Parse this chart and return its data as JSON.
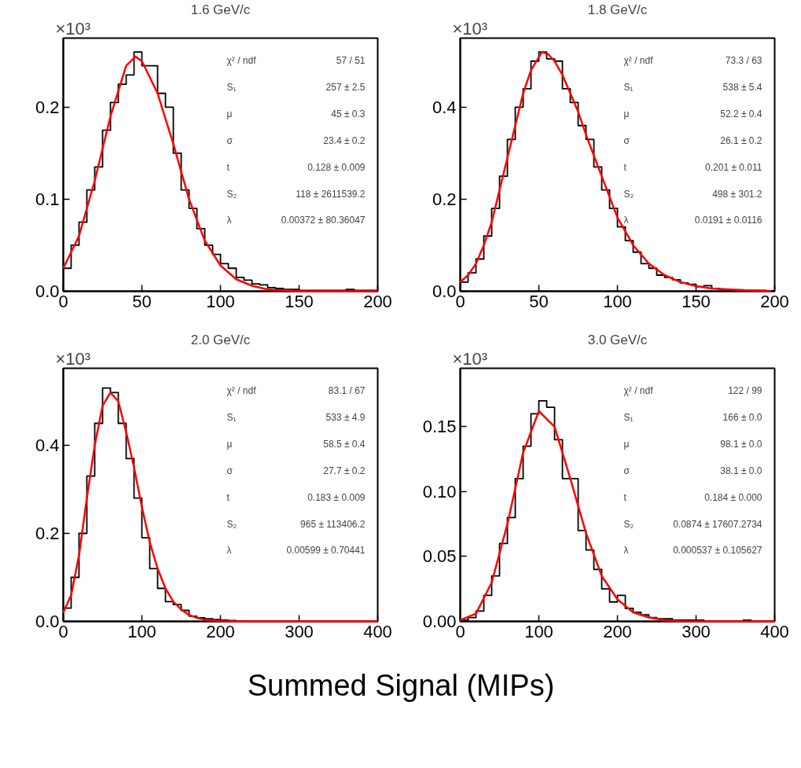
{
  "chart_data": [
    {
      "type": "histogram",
      "title": "1.6 GeV/c",
      "xlim": [
        0,
        200
      ],
      "ylim": [
        0,
        0.275
      ],
      "xticks": [
        0,
        50,
        100,
        150,
        200
      ],
      "yticks": [
        {
          "value": 0,
          "label": "0.0"
        },
        0.1,
        0.2
      ],
      "grid": false,
      "annotations": [
        "×10³",
        "χ² / ndf",
        "57 / 51",
        "S₁",
        "257 ± 2.5",
        "μ",
        "45 ± 0.3",
        "σ",
        "23.4 ± 0.2",
        "t",
        "0.128 ± 0.009",
        "S₂",
        "118 ± 2611539.2",
        "λ",
        "0.00372 ± 80.36047"
      ],
      "series": [
        {
          "type": "histogram",
          "color": "#000000",
          "bins": [
            0,
            5,
            10,
            15,
            20,
            25,
            30,
            35,
            40,
            45,
            50,
            55,
            60,
            65,
            70,
            75,
            80,
            85,
            90,
            95,
            100,
            105,
            110,
            115,
            120,
            125,
            130,
            135,
            140,
            145,
            150,
            155,
            160,
            165,
            170,
            175,
            180,
            185,
            190,
            195,
            200
          ],
          "values": [
            0.025,
            0.05,
            0.075,
            0.11,
            0.135,
            0.175,
            0.205,
            0.225,
            0.235,
            0.26,
            0.245,
            0.245,
            0.215,
            0.2,
            0.15,
            0.11,
            0.09,
            0.068,
            0.05,
            0.04,
            0.03,
            0.025,
            0.015,
            0.012,
            0.008,
            0.007,
            0.004,
            0.003,
            0.002,
            0.002,
            0.001,
            0.001,
            0.001,
            0.001,
            0.001,
            0.001,
            0.002,
            0.001,
            0.001,
            0.001
          ]
        },
        {
          "type": "line",
          "color": "#ff0000",
          "x": [
            0,
            10,
            20,
            30,
            40,
            46,
            50,
            60,
            70,
            80,
            90,
            100,
            110,
            120,
            130,
            140,
            150,
            200
          ],
          "values": [
            0.025,
            0.06,
            0.12,
            0.19,
            0.245,
            0.255,
            0.25,
            0.215,
            0.16,
            0.1,
            0.055,
            0.028,
            0.013,
            0.006,
            0.002,
            0.001,
            0,
            0
          ]
        }
      ]
    },
    {
      "type": "histogram",
      "title": "1.8 GeV/c",
      "xlim": [
        0,
        200
      ],
      "ylim": [
        0,
        0.55
      ],
      "xticks": [
        0,
        50,
        100,
        150,
        200
      ],
      "yticks": [
        {
          "value": 0,
          "label": "0.0"
        },
        0.2,
        0.4
      ],
      "grid": false,
      "annotations": [
        "×10³",
        "χ² / ndf",
        "73.3 / 63",
        "S₁",
        "538 ± 5.4",
        "μ",
        "52.2 ± 0.4",
        "σ",
        "26.1 ± 0.2",
        "t",
        "0.201 ± 0.011",
        "S₂",
        "498 ± 301.2",
        "λ",
        "0.0191 ± 0.0116"
      ],
      "series": [
        {
          "type": "histogram",
          "color": "#000000",
          "bins": [
            0,
            5,
            10,
            15,
            20,
            25,
            30,
            35,
            40,
            45,
            50,
            55,
            60,
            65,
            70,
            75,
            80,
            85,
            90,
            95,
            100,
            105,
            110,
            115,
            120,
            125,
            130,
            135,
            140,
            145,
            150,
            155,
            160,
            165,
            170,
            175,
            180,
            185,
            190,
            195,
            200
          ],
          "values": [
            0.02,
            0.04,
            0.07,
            0.12,
            0.18,
            0.25,
            0.33,
            0.4,
            0.44,
            0.5,
            0.52,
            0.505,
            0.5,
            0.44,
            0.41,
            0.36,
            0.33,
            0.27,
            0.22,
            0.18,
            0.14,
            0.11,
            0.085,
            0.06,
            0.05,
            0.035,
            0.03,
            0.025,
            0.018,
            0.015,
            0.01,
            0.012,
            0.006,
            0.004,
            0.003,
            0.003,
            0.002,
            0.002,
            0.002,
            0.001
          ]
        },
        {
          "type": "line",
          "color": "#ff0000",
          "x": [
            0,
            5,
            10,
            15,
            20,
            25,
            30,
            35,
            40,
            45,
            52,
            56,
            60,
            65,
            70,
            75,
            80,
            90,
            100,
            110,
            120,
            130,
            140,
            150,
            160,
            180,
            198
          ],
          "values": [
            0.02,
            0.035,
            0.06,
            0.1,
            0.15,
            0.22,
            0.29,
            0.36,
            0.43,
            0.48,
            0.52,
            0.515,
            0.5,
            0.47,
            0.43,
            0.39,
            0.34,
            0.25,
            0.16,
            0.1,
            0.06,
            0.035,
            0.02,
            0.011,
            0.006,
            0.002,
            0
          ]
        }
      ]
    },
    {
      "type": "histogram",
      "title": "2.0 GeV/c",
      "xlim": [
        0,
        400
      ],
      "ylim": [
        0,
        0.575
      ],
      "xticks": [
        0,
        100,
        200,
        300,
        400
      ],
      "yticks": [
        {
          "value": 0,
          "label": "0.0"
        },
        0.2,
        0.4
      ],
      "grid": false,
      "annotations": [
        "×10³",
        "χ² / ndf",
        "83.1 / 67",
        "S₁",
        "533 ± 4.9",
        "μ",
        "58.5 ± 0.4",
        "σ",
        "27.7 ± 0.2",
        "t",
        "0.183 ± 0.009",
        "S₂",
        "965 ± 113406.2",
        "λ",
        "0.00599 ± 0.70441"
      ],
      "series": [
        {
          "type": "histogram",
          "color": "#000000",
          "bins": [
            0,
            10,
            20,
            30,
            40,
            50,
            60,
            70,
            80,
            90,
            100,
            110,
            120,
            130,
            140,
            150,
            160,
            170,
            180,
            190,
            200,
            210,
            220,
            230,
            240,
            250,
            260,
            270,
            280,
            290,
            300,
            310,
            320,
            330,
            340,
            350,
            360,
            370,
            380,
            390,
            400
          ],
          "values": [
            0.03,
            0.1,
            0.2,
            0.33,
            0.45,
            0.53,
            0.52,
            0.45,
            0.37,
            0.28,
            0.19,
            0.12,
            0.075,
            0.045,
            0.038,
            0.025,
            0.012,
            0.008,
            0.006,
            0.004,
            0.003,
            0.002,
            0.001,
            0,
            0,
            0,
            0,
            0,
            0,
            0,
            0,
            0,
            0,
            0,
            0,
            0,
            0,
            0,
            0,
            0
          ]
        },
        {
          "type": "line",
          "color": "#ff0000",
          "x": [
            0,
            10,
            20,
            30,
            40,
            50,
            60,
            70,
            80,
            90,
            100,
            110,
            120,
            130,
            140,
            150,
            160,
            170,
            180,
            200,
            220,
            400
          ],
          "values": [
            0.02,
            0.06,
            0.15,
            0.28,
            0.4,
            0.49,
            0.52,
            0.5,
            0.43,
            0.35,
            0.26,
            0.18,
            0.12,
            0.075,
            0.045,
            0.027,
            0.015,
            0.008,
            0.004,
            0.001,
            0,
            0
          ]
        }
      ]
    },
    {
      "type": "histogram",
      "title": "3.0 GeV/c",
      "xlabel": "Summed Signal (MIPs)",
      "xlim": [
        0,
        400
      ],
      "ylim": [
        0,
        0.195
      ],
      "xticks": [
        0,
        100,
        200,
        300,
        400
      ],
      "yticks": [
        {
          "value": 0,
          "label": "0.00"
        },
        {
          "value": 0.05,
          "label": "0.05"
        },
        {
          "value": 0.1,
          "label": "0.10"
        },
        0.15
      ],
      "grid": false,
      "annotations": [
        "×10³",
        "χ² / ndf",
        "122 / 99",
        "S₁",
        "166 ± 0.0",
        "μ",
        "98.1 ± 0.0",
        "σ",
        "38.1 ± 0.0",
        "t",
        "0.184 ± 0.000",
        "S₂",
        "0.0874 ± 17607.2734",
        "λ",
        "0.000537 ± 0.105627"
      ],
      "series": [
        {
          "type": "histogram",
          "color": "#000000",
          "bins": [
            0,
            10,
            20,
            30,
            40,
            50,
            60,
            70,
            80,
            90,
            100,
            110,
            120,
            130,
            140,
            150,
            160,
            170,
            180,
            190,
            200,
            210,
            220,
            230,
            240,
            250,
            260,
            270,
            280,
            290,
            300,
            310,
            320,
            330,
            340,
            350,
            360,
            370,
            380,
            390,
            400
          ],
          "values": [
            0.001,
            0.003,
            0.008,
            0.02,
            0.035,
            0.06,
            0.08,
            0.11,
            0.135,
            0.16,
            0.17,
            0.165,
            0.14,
            0.11,
            0.11,
            0.07,
            0.055,
            0.04,
            0.025,
            0.015,
            0.02,
            0.01,
            0.007,
            0.005,
            0.003,
            0.002,
            0.002,
            0.001,
            0.001,
            0.001,
            0.001,
            0,
            0,
            0,
            0,
            0,
            0.001,
            0,
            0,
            0
          ]
        },
        {
          "type": "line",
          "color": "#ff0000",
          "x": [
            0,
            20,
            40,
            60,
            80,
            100,
            120,
            140,
            160,
            180,
            200,
            220,
            240,
            260,
            280,
            400
          ],
          "values": [
            0.001,
            0.006,
            0.03,
            0.075,
            0.13,
            0.162,
            0.15,
            0.11,
            0.068,
            0.035,
            0.017,
            0.007,
            0.003,
            0.001,
            0,
            0
          ]
        }
      ]
    }
  ]
}
